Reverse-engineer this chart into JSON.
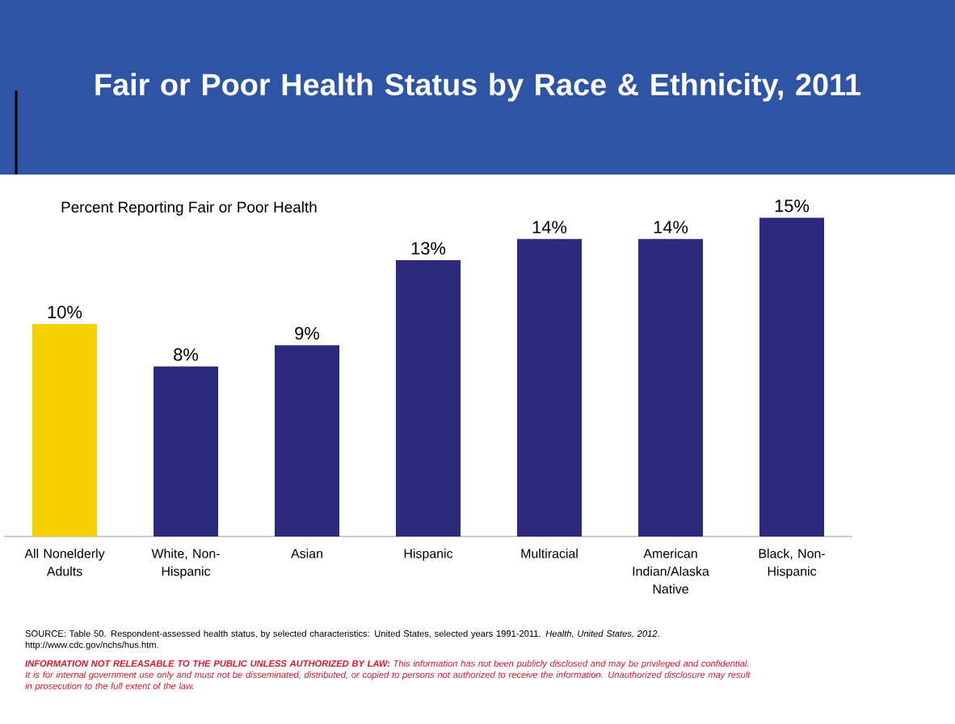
{
  "chart_data": {
    "type": "bar",
    "title": "Fair or Poor Health Status by Race & Ethnicity, 2011",
    "subtitle": "Percent Reporting Fair or Poor Health",
    "categories": [
      "All Nonelderly Adults",
      "White, Non-Hispanic",
      "Asian",
      "Hispanic",
      "Multiracial",
      "American Indian/Alaska Native",
      "Black, Non-Hispanic"
    ],
    "values": [
      10,
      8,
      9,
      13,
      14,
      14,
      15
    ],
    "value_labels": [
      "10%",
      "8%",
      "9%",
      "13%",
      "14%",
      "14%",
      "15%"
    ],
    "colors": [
      "#f7d000",
      "#2b2a7c",
      "#2b2a7c",
      "#2b2a7c",
      "#2b2a7c",
      "#2b2a7c",
      "#2b2a7c"
    ],
    "annotations": [
      "SOURCE:  Table 50. Respondent-assessed health status, by selected characteristics: United States, selected years 1991-2011.  *Health, United States, 2012*. http://www.cdc.gov/nchs/hus.htm.",
      "**INFORMATION NOT RELEASABLE TO THE PUBLIC UNLESS AUTHORIZED BY LAW:** This information has not been publicly disclosed and may be privileged and confidential.  It is for internal government use only and must not be disseminated, distributed, or copied to persons not authorized to receive the information.  Unauthorized disclosure may result in prosecution to the full extent of the law."
    ]
  }
}
